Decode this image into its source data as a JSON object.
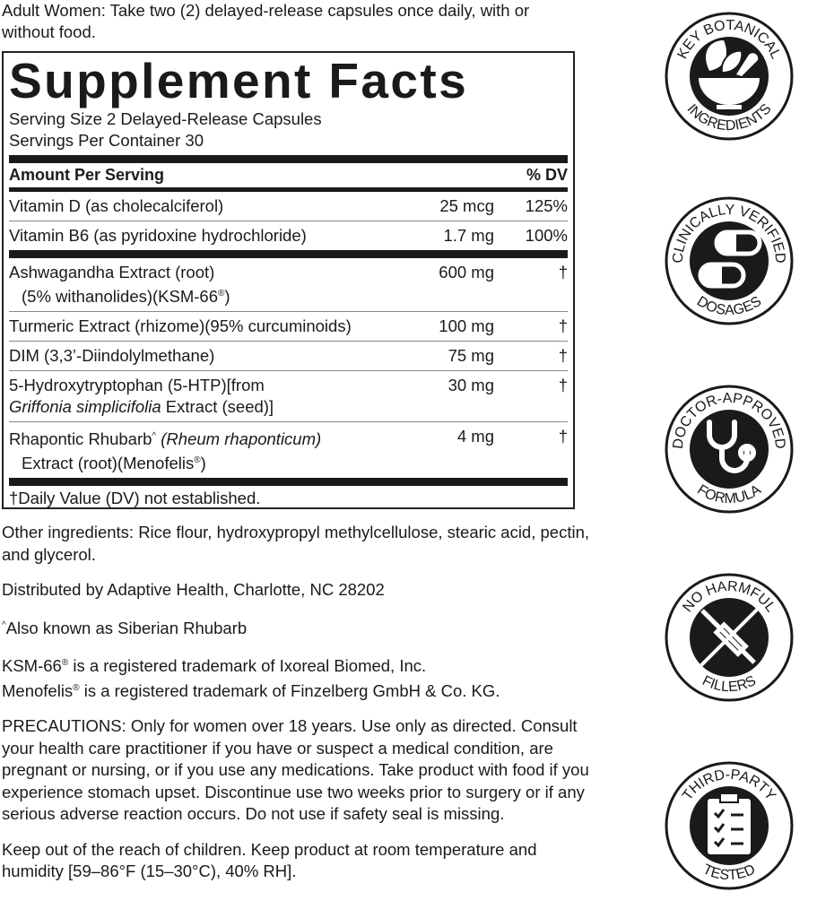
{
  "intro": "Adult Women: Take two (2) delayed-release capsules once daily, with or without food.",
  "facts": {
    "title": "Supplement Facts",
    "serving_size": "Serving Size 2 Delayed-Release Capsules",
    "servings_per_container": "Servings Per Container 30",
    "header": {
      "amount": "Amount Per Serving",
      "dv": "% DV"
    },
    "vitamins": [
      {
        "name": "Vitamin D (as cholecalciferol)",
        "amount": "25 mcg",
        "dv": "125%"
      },
      {
        "name": "Vitamin B6 (as pyridoxine hydrochloride)",
        "amount": "1.7 mg",
        "dv": "100%"
      }
    ],
    "others": [
      {
        "line1": "Ashwagandha Extract (root)",
        "line2a": "(5% withanolides)(KSM-66",
        "line2sup": "®",
        "line2b": ")",
        "amount": "600 mg",
        "dv": "†"
      },
      {
        "line1": "Turmeric Extract (rhizome)(95% curcuminoids)",
        "amount": "100 mg",
        "dv": "†"
      },
      {
        "line1": "DIM (3,3’-Diindolylmethane)",
        "amount": "75 mg",
        "dv": "†"
      },
      {
        "line1": "5-Hydroxytryptophan (5-HTP)[from",
        "line2i": "Griffonia simplicifolia",
        "line2b": " Extract (seed)]",
        "amount": "30 mg",
        "dv": "†"
      },
      {
        "line1a": "Rhapontic Rhubarb",
        "line1sup": "^",
        "line1i": " (Rheum rhaponticum)",
        "line2a": "Extract (root)(Menofelis",
        "line2sup": "®",
        "line2b": ")",
        "amount": "4 mg",
        "dv": "†"
      }
    ],
    "footnote": "†Daily Value (DV) not established."
  },
  "other_ingredients": "Other ingredients: Rice flour, hydroxypropyl methylcellulose, stearic acid, pectin, and glycerol.",
  "distributed": "Distributed by Adaptive Health, Charlotte, NC 28202",
  "aka": {
    "sup": "^",
    "text": "Also known as Siberian Rhubarb"
  },
  "trademarks": {
    "l1a": "KSM-66",
    "l1sup": "®",
    "l1b": " is a registered trademark of Ixoreal Biomed, Inc.",
    "l2a": "Menofelis",
    "l2sup": "®",
    "l2b": " is a registered trademark of Finzelberg GmbH & Co. KG."
  },
  "precautions": "PRECAUTIONS: Only for women over 18 years. Use only as directed. Consult your health care practitioner if you have or suspect a medical condition, are pregnant or nursing, or if you use any medications. Take product with food if you experience stomach upset. Discontinue use two weeks prior to surgery or if any serious adverse reaction occurs. Do not use if safety seal is missing.",
  "storage": "Keep out of the reach of children. Keep product at room temperature and humidity [59–86°F (15–30°C), 40% RH].",
  "badges": [
    {
      "top": "KEY BOTANICAL",
      "bottom": "INGREDIENTS",
      "icon": "mortar-pestle-leaf-icon"
    },
    {
      "top": "CLINICALLY VERIFIED",
      "bottom": "DOSAGES",
      "icon": "capsules-icon"
    },
    {
      "top": "DOCTOR-APPROVED",
      "bottom": "FORMULA",
      "icon": "stethoscope-icon"
    },
    {
      "top": "NO HARMFUL",
      "bottom": "FILLERS",
      "icon": "crossed-syringe-icon"
    },
    {
      "top": "THIRD-PARTY",
      "bottom": "TESTED",
      "icon": "clipboard-checklist-icon"
    }
  ],
  "colors": {
    "ink": "#1a1a1a",
    "background": "#ffffff"
  }
}
